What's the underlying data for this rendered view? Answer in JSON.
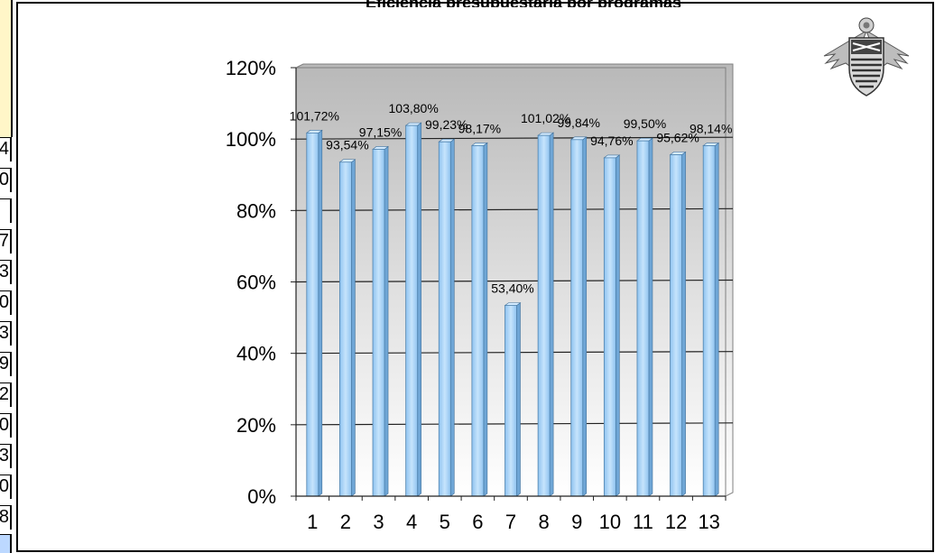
{
  "chart_data": {
    "type": "bar",
    "title": "Eficiencia presupuestaria por programas",
    "xlabel": "",
    "ylabel": "",
    "categories": [
      "1",
      "2",
      "3",
      "4",
      "5",
      "6",
      "7",
      "8",
      "9",
      "10",
      "11",
      "12",
      "13"
    ],
    "values": [
      101.72,
      93.54,
      97.15,
      103.8,
      99.23,
      98.17,
      53.4,
      101.02,
      99.84,
      94.76,
      99.5,
      95.62,
      98.14
    ],
    "data_labels": [
      "101,72%",
      "93,54%",
      "97,15%",
      "103,80%",
      "99,23%",
      "98,17%",
      "53,40%",
      "101,02%",
      "99,84%",
      "94,76%",
      "99,50%",
      "95,62%",
      "98,14%"
    ],
    "yticks": [
      "0%",
      "20%",
      "40%",
      "60%",
      "80%",
      "100%",
      "120%"
    ],
    "ylim": [
      0,
      120
    ],
    "grid": true,
    "legend": "none",
    "colors": {
      "bar_fill": "#a8d4f8",
      "bar_edge": "#5a8db8",
      "plot_bg_top": "#b8b8b8",
      "plot_bg_bottom": "#ffffff"
    }
  },
  "side_strip": {
    "cells": [
      "4",
      "0",
      "",
      "7",
      "3",
      "0",
      "3",
      "9",
      "2",
      "0",
      "3",
      "0",
      "8"
    ]
  }
}
